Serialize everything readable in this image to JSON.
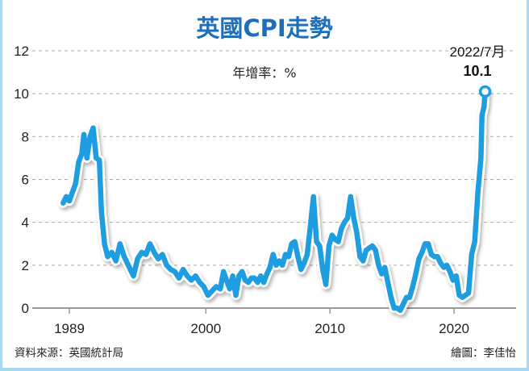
{
  "chart_data": {
    "type": "line",
    "title": "英國CPI走勢",
    "unit_label": "年增率：%",
    "ylim": [
      0,
      12
    ],
    "yticks": [
      "0",
      "2",
      "4",
      "6",
      "8",
      "10",
      "12"
    ],
    "xticks": [
      "1989",
      "2000",
      "2010",
      "2020"
    ],
    "grid": true,
    "line_color": "#1e9de0",
    "annotation": {
      "date": "2022/7月",
      "value": "10.1"
    },
    "source": "資料來源：英國統計局",
    "credit": "繪圖：李佳怡",
    "points": [
      [
        "1988-07",
        4.9
      ],
      [
        "1988-10",
        5.2
      ],
      [
        "1989-01",
        5.0
      ],
      [
        "1989-04",
        5.4
      ],
      [
        "1989-07",
        5.8
      ],
      [
        "1989-10",
        6.8
      ],
      [
        "1990-01",
        7.2
      ],
      [
        "1990-03",
        8.1
      ],
      [
        "1990-06",
        7.0
      ],
      [
        "1990-09",
        8.0
      ],
      [
        "1990-12",
        8.4
      ],
      [
        "1991-03",
        7.0
      ],
      [
        "1991-06",
        6.9
      ],
      [
        "1991-08",
        4.5
      ],
      [
        "1991-11",
        3.0
      ],
      [
        "1992-02",
        2.4
      ],
      [
        "1992-06",
        2.6
      ],
      [
        "1992-10",
        2.2
      ],
      [
        "1993-02",
        3.0
      ],
      [
        "1993-06",
        2.4
      ],
      [
        "1993-10",
        2.0
      ],
      [
        "1994-03",
        1.5
      ],
      [
        "1994-07",
        2.3
      ],
      [
        "1994-11",
        2.6
      ],
      [
        "1995-03",
        2.5
      ],
      [
        "1995-07",
        3.0
      ],
      [
        "1995-11",
        2.6
      ],
      [
        "1996-03",
        2.3
      ],
      [
        "1996-07",
        2.5
      ],
      [
        "1996-11",
        2.0
      ],
      [
        "1997-03",
        1.8
      ],
      [
        "1997-07",
        1.7
      ],
      [
        "1997-11",
        1.4
      ],
      [
        "1998-03",
        1.8
      ],
      [
        "1998-07",
        1.5
      ],
      [
        "1998-11",
        1.3
      ],
      [
        "1999-03",
        1.5
      ],
      [
        "1999-07",
        1.2
      ],
      [
        "1999-11",
        1.0
      ],
      [
        "2000-03",
        0.6
      ],
      [
        "2000-07",
        0.8
      ],
      [
        "2000-11",
        1.0
      ],
      [
        "2001-03",
        0.9
      ],
      [
        "2001-06",
        1.7
      ],
      [
        "2001-09",
        1.3
      ],
      [
        "2001-12",
        0.9
      ],
      [
        "2002-03",
        1.5
      ],
      [
        "2002-06",
        0.6
      ],
      [
        "2002-09",
        1.5
      ],
      [
        "2002-12",
        1.7
      ],
      [
        "2003-03",
        1.3
      ],
      [
        "2003-06",
        1.2
      ],
      [
        "2003-09",
        1.4
      ],
      [
        "2003-12",
        1.4
      ],
      [
        "2004-03",
        1.2
      ],
      [
        "2004-06",
        1.5
      ],
      [
        "2004-09",
        1.2
      ],
      [
        "2004-12",
        1.6
      ],
      [
        "2005-03",
        1.9
      ],
      [
        "2005-06",
        2.5
      ],
      [
        "2005-09",
        2.0
      ],
      [
        "2005-12",
        2.2
      ],
      [
        "2006-03",
        2.0
      ],
      [
        "2006-06",
        2.5
      ],
      [
        "2006-09",
        2.4
      ],
      [
        "2006-12",
        3.0
      ],
      [
        "2007-03",
        3.1
      ],
      [
        "2007-06",
        2.4
      ],
      [
        "2007-09",
        1.8
      ],
      [
        "2007-12",
        2.1
      ],
      [
        "2008-03",
        2.5
      ],
      [
        "2008-06",
        3.8
      ],
      [
        "2008-09",
        5.2
      ],
      [
        "2008-12",
        3.1
      ],
      [
        "2009-03",
        2.9
      ],
      [
        "2009-06",
        1.8
      ],
      [
        "2009-09",
        1.1
      ],
      [
        "2009-12",
        2.9
      ],
      [
        "2010-03",
        3.4
      ],
      [
        "2010-06",
        3.2
      ],
      [
        "2010-09",
        3.1
      ],
      [
        "2010-12",
        3.7
      ],
      [
        "2011-03",
        4.0
      ],
      [
        "2011-06",
        4.2
      ],
      [
        "2011-09",
        5.2
      ],
      [
        "2011-12",
        4.2
      ],
      [
        "2012-03",
        3.5
      ],
      [
        "2012-06",
        2.4
      ],
      [
        "2012-09",
        2.2
      ],
      [
        "2012-12",
        2.7
      ],
      [
        "2013-03",
        2.8
      ],
      [
        "2013-06",
        2.9
      ],
      [
        "2013-09",
        2.7
      ],
      [
        "2013-12",
        2.0
      ],
      [
        "2014-03",
        1.6
      ],
      [
        "2014-06",
        1.9
      ],
      [
        "2014-09",
        1.2
      ],
      [
        "2014-12",
        0.5
      ],
      [
        "2015-03",
        0.0
      ],
      [
        "2015-06",
        0.0
      ],
      [
        "2015-09",
        -0.1
      ],
      [
        "2015-12",
        0.2
      ],
      [
        "2016-03",
        0.5
      ],
      [
        "2016-06",
        0.5
      ],
      [
        "2016-09",
        1.0
      ],
      [
        "2016-12",
        1.6
      ],
      [
        "2017-03",
        2.3
      ],
      [
        "2017-06",
        2.6
      ],
      [
        "2017-09",
        3.0
      ],
      [
        "2017-12",
        3.0
      ],
      [
        "2018-03",
        2.5
      ],
      [
        "2018-06",
        2.4
      ],
      [
        "2018-09",
        2.4
      ],
      [
        "2018-12",
        2.1
      ],
      [
        "2019-03",
        1.9
      ],
      [
        "2019-06",
        2.0
      ],
      [
        "2019-09",
        1.7
      ],
      [
        "2019-12",
        1.3
      ],
      [
        "2020-03",
        1.5
      ],
      [
        "2020-06",
        0.6
      ],
      [
        "2020-09",
        0.5
      ],
      [
        "2020-12",
        0.6
      ],
      [
        "2021-03",
        0.7
      ],
      [
        "2021-06",
        2.5
      ],
      [
        "2021-09",
        3.1
      ],
      [
        "2021-12",
        5.4
      ],
      [
        "2022-03",
        7.0
      ],
      [
        "2022-04",
        9.0
      ],
      [
        "2022-06",
        9.4
      ],
      [
        "2022-07",
        10.1
      ]
    ]
  }
}
